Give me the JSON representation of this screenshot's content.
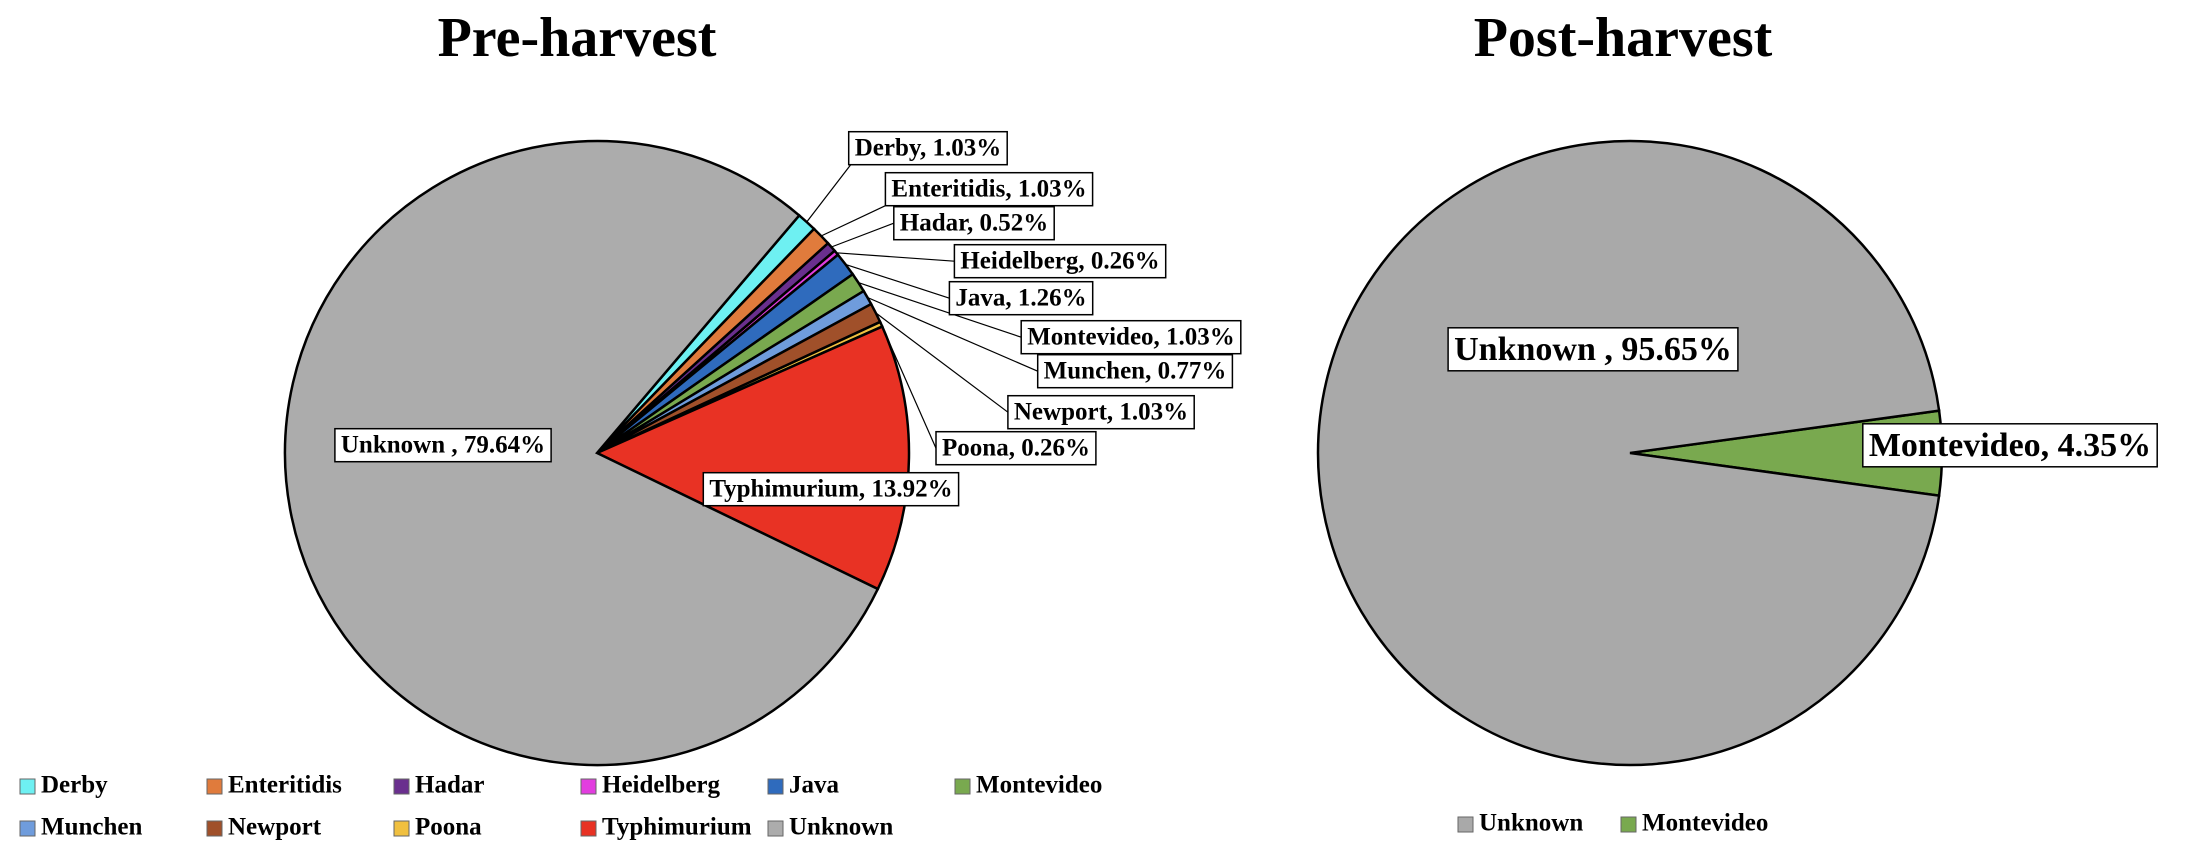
{
  "chart_data": [
    {
      "type": "pie",
      "title": "Pre-harvest",
      "categories": [
        "Derby",
        "Enteritidis",
        "Hadar",
        "Heidelberg",
        "Java",
        "Montevideo",
        "Munchen",
        "Newport",
        "Poona",
        "Typhimurium",
        "Unknown"
      ],
      "values": [
        1.03,
        1.03,
        0.52,
        0.26,
        1.26,
        1.03,
        0.77,
        1.03,
        0.26,
        13.92,
        79.64
      ],
      "unit": "%",
      "colors": [
        "#6ef0f2",
        "#e07b3c",
        "#6a2f8e",
        "#e23ddf",
        "#2f6bbd",
        "#79a94f",
        "#6f9cdc",
        "#a0502a",
        "#f0c040",
        "#e83224",
        "#acacac"
      ],
      "data_labels": [
        "Derby, 1.03%",
        "Enteritidis, 1.03%",
        "Hadar, 0.52%",
        "Heidelberg, 0.26%",
        "Java, 1.26%",
        "Montevideo, 1.03%",
        "Munchen, 0.77%",
        "Newport, 1.03%",
        "Poona, 0.26%",
        "Typhimurium, 13.92%",
        "Unknown , 79.64%"
      ],
      "legend": {
        "position": "bottom",
        "entries": [
          "Derby",
          "Enteritidis",
          "Hadar",
          "Heidelberg",
          "Java",
          "Montevideo",
          "Munchen",
          "Newport",
          "Poona",
          "Typhimurium",
          "Unknown"
        ]
      }
    },
    {
      "type": "pie",
      "title": "Post-harvest",
      "categories": [
        "Montevideo",
        "Unknown"
      ],
      "values": [
        4.35,
        95.65
      ],
      "unit": "%",
      "colors": [
        "#79a94f",
        "#a9a9a9"
      ],
      "data_labels": [
        "Montevideo, 4.35%",
        "Unknown , 95.65%"
      ],
      "legend": {
        "position": "bottom",
        "entries": [
          "Unknown",
          "Montevideo"
        ],
        "colors": [
          "#a9a9a9",
          "#79a94f"
        ]
      }
    }
  ]
}
